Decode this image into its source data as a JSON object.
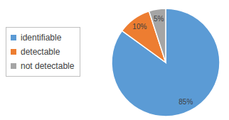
{
  "chart_data": {
    "type": "pie",
    "categories": [
      "identifiable",
      "detectable",
      "not detectable"
    ],
    "values": [
      85,
      10,
      5
    ],
    "value_labels": [
      "85%",
      "10%",
      "5%"
    ],
    "colors": [
      "#5b9bd5",
      "#ed7d31",
      "#a5a5a5"
    ],
    "data_labels": true,
    "legend": "left"
  }
}
